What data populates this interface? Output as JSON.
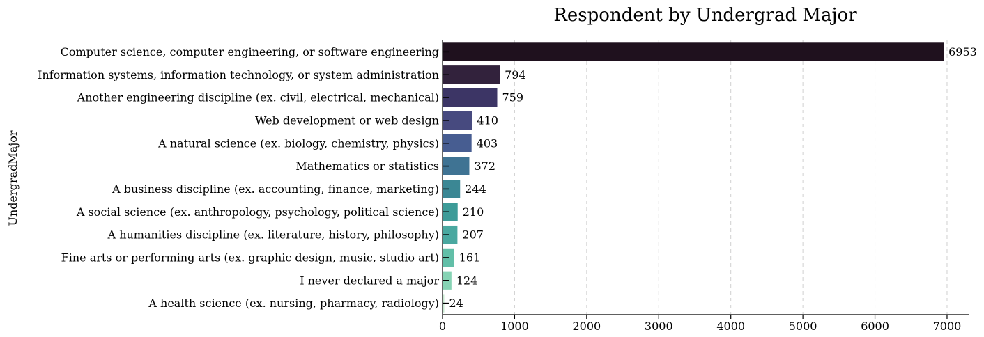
{
  "chart_data": {
    "type": "bar",
    "orientation": "horizontal",
    "title": "Respondent by Undergrad Major",
    "xlabel": "",
    "ylabel": "UndergradMajor",
    "categories": [
      "Computer science, computer engineering, or software engineering",
      "Information systems, information technology, or system administration",
      "Another engineering discipline (ex. civil, electrical, mechanical)",
      "Web development or web design",
      "A natural science (ex. biology, chemistry, physics)",
      "Mathematics or statistics",
      "A business discipline (ex. accounting, finance, marketing)",
      "A social science (ex. anthropology, psychology, political science)",
      "A humanities discipline (ex. literature, history, philosophy)",
      "Fine arts or performing arts (ex. graphic design, music, studio art)",
      "I never declared a major",
      "A health science (ex. nursing, pharmacy, radiology)"
    ],
    "values": [
      6953,
      794,
      759,
      410,
      403,
      372,
      244,
      210,
      207,
      161,
      124,
      24
    ],
    "colors": [
      "#1f111e",
      "#32223c",
      "#3c3565",
      "#474a7f",
      "#475d91",
      "#3f7393",
      "#3b8794",
      "#3d9b98",
      "#4aa8a0",
      "#62bfa8",
      "#86d3b4",
      "#c7e9d0"
    ],
    "xlim": [
      0,
      7300
    ],
    "xticks": [
      0,
      1000,
      2000,
      3000,
      4000,
      5000,
      6000,
      7000
    ],
    "grid": "x-dashed",
    "legend": "none"
  }
}
